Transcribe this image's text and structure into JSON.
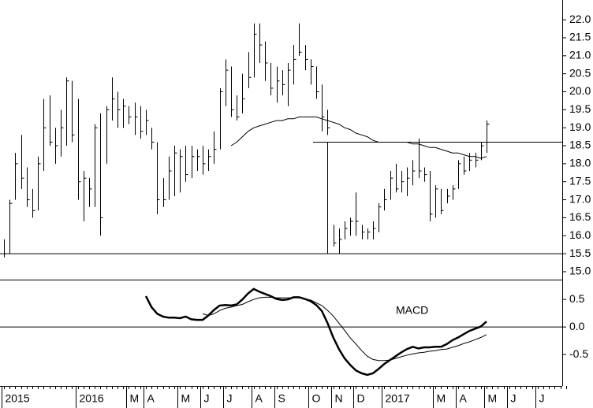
{
  "chart_data": [
    {
      "type": "ohlc",
      "color": "#000000",
      "categories": [
        "2015",
        null,
        null,
        null,
        null,
        null,
        null,
        null,
        null,
        null,
        null,
        null,
        null,
        "2016",
        null,
        null,
        null,
        null,
        null,
        null,
        null,
        null,
        "M",
        null,
        null,
        "A",
        null,
        null,
        null,
        null,
        null,
        "M",
        null,
        null,
        null,
        "J",
        null,
        null,
        null,
        "J",
        null,
        null,
        null,
        null,
        "A",
        null,
        null,
        null,
        "S",
        null,
        null,
        null,
        null,
        null,
        "O",
        null,
        null,
        null,
        "N",
        null,
        null,
        null,
        "D",
        null,
        null,
        null,
        null,
        "2017",
        null,
        null,
        null,
        null,
        null,
        null,
        null,
        null,
        "M",
        null,
        null,
        null,
        "A",
        null,
        null,
        null,
        null,
        "M",
        null,
        null,
        null,
        "J",
        null,
        null,
        null,
        null,
        "J",
        null,
        null,
        null,
        null,
        null
      ],
      "high": [
        15.9,
        17.0,
        18.3,
        18.8,
        17.9,
        17.3,
        18.2,
        19.8,
        19.9,
        19.0,
        19.5,
        20.4,
        20.3,
        19.8,
        17.8,
        17.6,
        19.1,
        19.4,
        19.6,
        20.4,
        20.0,
        19.8,
        19.6,
        19.7,
        19.6,
        19.5,
        19.0,
        18.6,
        17.6,
        18.2,
        18.5,
        18.4,
        18.5,
        18.5,
        18.4,
        18.5,
        18.4,
        18.9,
        20.1,
        20.9,
        20.7,
        19.9,
        20.5,
        21.1,
        21.9,
        21.9,
        21.4,
        20.8,
        20.7,
        20.6,
        20.8,
        21.3,
        21.9,
        21.3,
        20.9,
        20.7,
        20.2,
        19.5,
        16.3,
        16.2,
        16.4,
        16.5,
        17.2,
        16.3,
        16.2,
        16.4,
        16.9,
        17.3,
        17.8,
        18.0,
        17.8,
        17.9,
        18.1,
        18.7,
        17.9,
        17.8,
        17.4,
        17.3,
        17.3,
        17.4,
        18.1,
        18.2,
        18.3,
        18.3,
        18.6,
        19.2,
        null,
        null,
        null,
        null,
        null,
        null,
        null,
        null,
        null,
        null,
        null,
        null,
        null,
        null
      ],
      "low": [
        15.4,
        15.5,
        17.0,
        17.3,
        16.8,
        16.5,
        16.7,
        17.8,
        18.5,
        18.0,
        18.2,
        18.5,
        18.6,
        17.0,
        16.4,
        16.8,
        16.8,
        16.0,
        18.0,
        19.2,
        19.0,
        19.0,
        19.1,
        18.8,
        18.7,
        18.8,
        18.4,
        16.6,
        16.8,
        17.0,
        17.1,
        17.2,
        17.5,
        17.6,
        17.8,
        17.7,
        17.8,
        18.0,
        18.4,
        19.6,
        19.3,
        19.2,
        19.4,
        20.1,
        20.4,
        20.8,
        20.3,
        19.9,
        19.7,
        19.9,
        19.6,
        20.2,
        21.0,
        20.6,
        20.2,
        19.8,
        18.9,
        18.8,
        15.7,
        15.5,
        15.9,
        16.0,
        16.0,
        15.9,
        15.9,
        15.9,
        16.1,
        16.7,
        17.0,
        17.2,
        17.2,
        17.1,
        17.4,
        17.6,
        17.5,
        16.4,
        16.5,
        16.6,
        16.9,
        17.0,
        17.3,
        17.7,
        17.8,
        17.9,
        18.1,
        18.3,
        null,
        null,
        null,
        null,
        null,
        null,
        null,
        null,
        null,
        null,
        null,
        null,
        null,
        null
      ],
      "close": [
        15.5,
        16.9,
        18.0,
        17.6,
        17.0,
        16.7,
        18.0,
        19.0,
        18.6,
        18.5,
        19.0,
        20.3,
        18.8,
        17.5,
        17.6,
        17.3,
        19.0,
        16.5,
        19.5,
        19.8,
        19.5,
        19.6,
        19.3,
        19.3,
        18.9,
        19.2,
        18.6,
        17.0,
        17.0,
        17.8,
        18.3,
        18.2,
        17.7,
        18.2,
        18.2,
        18.0,
        18.2,
        18.4,
        20.0,
        20.6,
        19.5,
        19.3,
        19.8,
        20.4,
        21.6,
        21.3,
        20.8,
        20.1,
        20.3,
        20.2,
        20.6,
        20.9,
        21.1,
        20.9,
        20.7,
        20.0,
        19.3,
        19.0,
        15.8,
        15.9,
        16.2,
        16.4,
        16.4,
        16.1,
        16.1,
        16.2,
        16.8,
        17.0,
        17.6,
        17.3,
        17.5,
        17.6,
        17.8,
        17.8,
        17.7,
        16.6,
        17.3,
        16.7,
        17.1,
        17.3,
        18.0,
        17.8,
        18.1,
        18.1,
        18.5,
        19.1,
        null,
        null,
        null,
        null,
        null,
        null,
        null,
        null,
        null,
        null,
        null,
        null,
        null,
        null
      ],
      "series": [
        {
          "color": "#000000",
          "values": [
            null,
            null,
            null,
            null,
            null,
            null,
            null,
            null,
            null,
            null,
            null,
            null,
            null,
            null,
            null,
            null,
            null,
            null,
            null,
            null,
            null,
            null,
            null,
            null,
            null,
            null,
            null,
            null,
            null,
            null,
            null,
            null,
            null,
            null,
            null,
            null,
            null,
            null,
            null,
            null,
            18.5,
            18.6,
            18.75,
            18.9,
            19.0,
            19.05,
            19.1,
            19.15,
            19.2,
            19.2,
            19.25,
            19.25,
            19.3,
            19.3,
            19.3,
            19.3,
            19.25,
            19.2,
            19.15,
            19.1,
            19.0,
            18.95,
            18.85,
            18.8,
            18.75,
            18.65,
            18.6,
            18.6,
            18.6,
            18.6,
            18.6,
            18.6,
            18.55,
            18.55,
            18.5,
            18.45,
            18.45,
            18.4,
            18.35,
            18.3,
            18.3,
            18.25,
            18.2,
            18.2,
            18.15,
            18.2,
            null,
            null,
            null,
            null,
            null,
            null,
            null,
            null,
            null,
            null,
            null,
            null,
            null,
            null
          ]
        }
      ],
      "hlines": [
        15.5,
        18.6
      ],
      "ylim": [
        14.78,
        22.55
      ],
      "yticks": [
        {
          "value": 15,
          "label": "15.0"
        },
        15.5,
        {
          "value": 16,
          "label": "16.0"
        },
        16.5,
        {
          "value": 17,
          "label": "17.0"
        },
        17.5,
        {
          "value": 18,
          "label": "18.0"
        },
        18.5,
        {
          "value": 19,
          "label": "19.0"
        },
        19.5,
        {
          "value": 20,
          "label": "20.0"
        },
        20.5,
        {
          "value": 21,
          "label": "21.0"
        },
        21.5,
        {
          "value": 22,
          "label": "22.0"
        }
      ]
    },
    {
      "type": "line",
      "annotation": "MACD",
      "series": [
        {
          "color": "#000000",
          "values": [
            null,
            null,
            null,
            null,
            null,
            null,
            null,
            null,
            null,
            null,
            null,
            null,
            null,
            null,
            null,
            null,
            null,
            null,
            null,
            null,
            null,
            null,
            null,
            null,
            null,
            0.56,
            0.36,
            0.24,
            0.19,
            0.17,
            0.17,
            0.16,
            0.19,
            0.14,
            0.13,
            0.13,
            0.21,
            0.31,
            0.39,
            0.4,
            0.39,
            0.41,
            0.5,
            0.61,
            0.69,
            0.64,
            0.6,
            0.56,
            0.51,
            0.49,
            0.5,
            0.54,
            0.54,
            0.51,
            0.47,
            0.4,
            0.29,
            0.07,
            -0.19,
            -0.4,
            -0.57,
            -0.69,
            -0.79,
            -0.84,
            -0.87,
            -0.84,
            -0.76,
            -0.67,
            -0.6,
            -0.53,
            -0.46,
            -0.4,
            -0.36,
            -0.39,
            -0.37,
            -0.37,
            -0.36,
            -0.36,
            -0.31,
            -0.24,
            -0.19,
            -0.13,
            -0.07,
            -0.03,
            0.01,
            0.1,
            null,
            null,
            null,
            null,
            null,
            null,
            null,
            null,
            null,
            null,
            null,
            null,
            null,
            null
          ]
        },
        {
          "color": "#000000",
          "values": [
            null,
            null,
            null,
            null,
            null,
            null,
            null,
            null,
            null,
            null,
            null,
            null,
            null,
            null,
            null,
            null,
            null,
            null,
            null,
            null,
            null,
            null,
            null,
            null,
            null,
            null,
            null,
            null,
            null,
            null,
            null,
            null,
            null,
            null,
            null,
            0.24,
            0.21,
            0.24,
            0.3,
            0.34,
            0.36,
            0.39,
            0.41,
            0.46,
            0.5,
            0.53,
            0.54,
            0.54,
            0.53,
            0.53,
            0.53,
            0.53,
            0.53,
            0.51,
            0.49,
            0.44,
            0.39,
            0.3,
            0.2,
            0.07,
            -0.06,
            -0.2,
            -0.31,
            -0.43,
            -0.53,
            -0.59,
            -0.61,
            -0.61,
            -0.6,
            -0.57,
            -0.54,
            -0.51,
            -0.49,
            -0.47,
            -0.46,
            -0.44,
            -0.43,
            -0.41,
            -0.4,
            -0.37,
            -0.34,
            -0.3,
            -0.27,
            -0.23,
            -0.19,
            -0.14,
            null,
            null,
            null,
            null,
            null,
            null,
            null,
            null,
            null,
            null,
            null,
            null,
            null,
            null
          ]
        }
      ],
      "hlines": [
        0
      ],
      "ylim": [
        -1.07,
        0.86
      ],
      "yticks": [
        0.5,
        {
          "value": 0,
          "label": "0.0"
        },
        -0.5
      ]
    }
  ]
}
